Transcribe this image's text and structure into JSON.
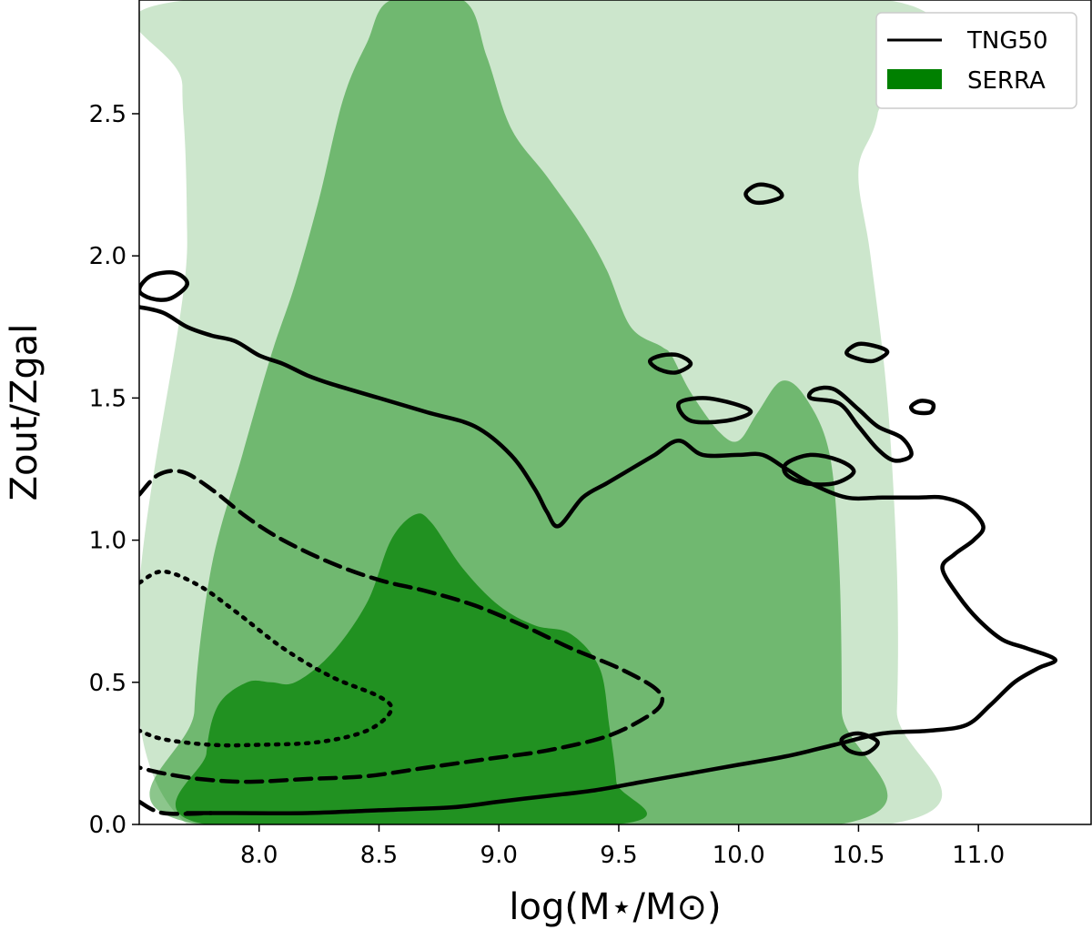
{
  "chart_data": {
    "type": "contour",
    "xlabel": "log(M⋆/M⊙)",
    "ylabel": "Zout/Zgal",
    "xlim": [
      7.5,
      11.47
    ],
    "ylim": [
      0.0,
      2.9
    ],
    "xticks": [
      "8.0",
      "8.5",
      "9.0",
      "9.5",
      "10.0",
      "10.5",
      "11.0"
    ],
    "yticks": [
      "0.0",
      "0.5",
      "1.0",
      "1.5",
      "2.0",
      "2.5"
    ],
    "grid": false,
    "legend": {
      "position": "top-right",
      "entries": [
        {
          "label": "TNG50",
          "style": "line",
          "color": "#000000"
        },
        {
          "label": "SERRA",
          "style": "filled",
          "color": "#008000"
        }
      ]
    },
    "series": [
      {
        "name": "SERRA",
        "kind": "filled-contours",
        "color": "#008000",
        "levels": [
          {
            "alpha": 0.2,
            "points": [
              [
                7.7,
                0.0
              ],
              [
                7.7,
                2.05
              ],
              [
                7.68,
                2.6
              ],
              [
                7.7,
                2.9
              ],
              [
                10.62,
                2.9
              ],
              [
                10.58,
                2.5
              ],
              [
                10.5,
                2.3
              ],
              [
                10.55,
                2.0
              ],
              [
                10.62,
                1.5
              ],
              [
                10.66,
                0.9
              ],
              [
                10.66,
                0.4
              ],
              [
                10.62,
                0.0
              ]
            ]
          },
          {
            "alpha": 0.45,
            "points": [
              [
                7.75,
                0.0
              ],
              [
                7.73,
                0.4
              ],
              [
                7.8,
                0.9
              ],
              [
                7.93,
                1.3
              ],
              [
                8.05,
                1.65
              ],
              [
                8.15,
                1.9
              ],
              [
                8.25,
                2.2
              ],
              [
                8.35,
                2.55
              ],
              [
                8.45,
                2.75
              ],
              [
                8.55,
                2.9
              ],
              [
                8.85,
                2.9
              ],
              [
                8.95,
                2.7
              ],
              [
                9.05,
                2.45
              ],
              [
                9.2,
                2.28
              ],
              [
                9.35,
                2.1
              ],
              [
                9.45,
                1.95
              ],
              [
                9.55,
                1.75
              ],
              [
                9.68,
                1.68
              ],
              [
                9.72,
                1.65
              ],
              [
                9.8,
                1.52
              ],
              [
                9.92,
                1.38
              ],
              [
                10.0,
                1.35
              ],
              [
                10.08,
                1.45
              ],
              [
                10.18,
                1.56
              ],
              [
                10.28,
                1.5
              ],
              [
                10.38,
                1.3
              ],
              [
                10.42,
                0.9
              ],
              [
                10.43,
                0.4
              ],
              [
                10.42,
                0.0
              ]
            ]
          },
          {
            "alpha": 0.7,
            "points": [
              [
                7.78,
                0.0
              ],
              [
                7.78,
                0.25
              ],
              [
                7.83,
                0.42
              ],
              [
                7.95,
                0.5
              ],
              [
                8.05,
                0.5
              ],
              [
                8.15,
                0.5
              ],
              [
                8.3,
                0.6
              ],
              [
                8.45,
                0.78
              ],
              [
                8.55,
                1.0
              ],
              [
                8.65,
                1.09
              ],
              [
                8.72,
                1.06
              ],
              [
                8.85,
                0.9
              ],
              [
                9.0,
                0.77
              ],
              [
                9.15,
                0.7
              ],
              [
                9.3,
                0.67
              ],
              [
                9.42,
                0.55
              ],
              [
                9.46,
                0.35
              ],
              [
                9.49,
                0.15
              ],
              [
                9.49,
                0.0
              ]
            ]
          }
        ]
      },
      {
        "name": "TNG50",
        "kind": "line-contours",
        "color": "#000000",
        "contours": [
          {
            "style": "solid",
            "closed": false,
            "points": [
              [
                7.5,
                1.82
              ],
              [
                7.6,
                1.8
              ],
              [
                7.7,
                1.75
              ],
              [
                7.8,
                1.72
              ],
              [
                7.9,
                1.7
              ],
              [
                8.0,
                1.65
              ],
              [
                8.1,
                1.62
              ],
              [
                8.2,
                1.58
              ],
              [
                8.3,
                1.55
              ],
              [
                8.5,
                1.5
              ],
              [
                8.7,
                1.45
              ],
              [
                8.9,
                1.4
              ],
              [
                9.05,
                1.3
              ],
              [
                9.15,
                1.18
              ],
              [
                9.2,
                1.1
              ],
              [
                9.25,
                1.05
              ],
              [
                9.35,
                1.15
              ],
              [
                9.45,
                1.2
              ],
              [
                9.55,
                1.25
              ],
              [
                9.65,
                1.3
              ],
              [
                9.75,
                1.35
              ],
              [
                9.85,
                1.3
              ],
              [
                10.0,
                1.3
              ],
              [
                10.1,
                1.3
              ],
              [
                10.2,
                1.25
              ],
              [
                10.3,
                1.2
              ],
              [
                10.45,
                1.15
              ],
              [
                10.6,
                1.15
              ],
              [
                10.75,
                1.15
              ],
              [
                10.85,
                1.15
              ],
              [
                10.95,
                1.12
              ],
              [
                11.02,
                1.05
              ],
              [
                10.98,
                1.0
              ],
              [
                10.9,
                0.95
              ],
              [
                10.85,
                0.9
              ],
              [
                10.92,
                0.8
              ],
              [
                11.0,
                0.72
              ],
              [
                11.1,
                0.65
              ],
              [
                11.2,
                0.62
              ],
              [
                11.32,
                0.58
              ],
              [
                11.25,
                0.55
              ],
              [
                11.15,
                0.5
              ],
              [
                11.05,
                0.42
              ],
              [
                10.95,
                0.35
              ],
              [
                10.8,
                0.33
              ],
              [
                10.6,
                0.32
              ],
              [
                10.4,
                0.28
              ],
              [
                10.2,
                0.24
              ],
              [
                10.0,
                0.21
              ],
              [
                9.8,
                0.18
              ],
              [
                9.6,
                0.15
              ],
              [
                9.4,
                0.12
              ],
              [
                9.2,
                0.1
              ],
              [
                9.0,
                0.08
              ],
              [
                8.8,
                0.06
              ],
              [
                8.5,
                0.05
              ],
              [
                8.2,
                0.04
              ],
              [
                7.9,
                0.04
              ],
              [
                7.7,
                0.04
              ]
            ]
          },
          {
            "style": "solid",
            "closed": true,
            "points": [
              [
                7.5,
                1.88
              ],
              [
                7.55,
                1.93
              ],
              [
                7.65,
                1.94
              ],
              [
                7.7,
                1.9
              ],
              [
                7.63,
                1.85
              ],
              [
                7.55,
                1.85
              ]
            ]
          },
          {
            "style": "solid",
            "closed": true,
            "points": [
              [
                10.03,
                2.22
              ],
              [
                10.08,
                2.25
              ],
              [
                10.15,
                2.24
              ],
              [
                10.18,
                2.21
              ],
              [
                10.12,
                2.19
              ],
              [
                10.06,
                2.19
              ]
            ]
          },
          {
            "style": "solid",
            "closed": true,
            "points": [
              [
                9.63,
                1.63
              ],
              [
                9.68,
                1.65
              ],
              [
                9.75,
                1.65
              ],
              [
                9.8,
                1.62
              ],
              [
                9.74,
                1.59
              ],
              [
                9.67,
                1.6
              ]
            ]
          },
          {
            "style": "solid",
            "closed": true,
            "points": [
              [
                10.45,
                1.66
              ],
              [
                10.5,
                1.69
              ],
              [
                10.58,
                1.68
              ],
              [
                10.62,
                1.66
              ],
              [
                10.56,
                1.63
              ],
              [
                10.49,
                1.64
              ]
            ]
          },
          {
            "style": "solid",
            "closed": true,
            "points": [
              [
                10.72,
                1.47
              ],
              [
                10.76,
                1.49
              ],
              [
                10.81,
                1.48
              ],
              [
                10.8,
                1.45
              ],
              [
                10.74,
                1.45
              ]
            ]
          },
          {
            "style": "solid",
            "closed": true,
            "points": [
              [
                9.75,
                1.48
              ],
              [
                9.85,
                1.5
              ],
              [
                9.98,
                1.48
              ],
              [
                10.05,
                1.45
              ],
              [
                9.95,
                1.42
              ],
              [
                9.8,
                1.42
              ]
            ]
          },
          {
            "style": "solid",
            "closed": true,
            "points": [
              [
                10.3,
                1.5
              ],
              [
                10.42,
                1.48
              ],
              [
                10.5,
                1.4
              ],
              [
                10.58,
                1.32
              ],
              [
                10.65,
                1.28
              ],
              [
                10.72,
                1.3
              ],
              [
                10.68,
                1.36
              ],
              [
                10.58,
                1.4
              ],
              [
                10.5,
                1.46
              ],
              [
                10.4,
                1.53
              ],
              [
                10.32,
                1.53
              ]
            ]
          },
          {
            "style": "solid",
            "closed": true,
            "points": [
              [
                10.2,
                1.27
              ],
              [
                10.3,
                1.3
              ],
              [
                10.42,
                1.28
              ],
              [
                10.48,
                1.24
              ],
              [
                10.4,
                1.2
              ],
              [
                10.28,
                1.2
              ],
              [
                10.2,
                1.23
              ]
            ]
          },
          {
            "style": "solid",
            "closed": true,
            "points": [
              [
                10.43,
                0.3
              ],
              [
                10.5,
                0.32
              ],
              [
                10.58,
                0.29
              ],
              [
                10.53,
                0.25
              ],
              [
                10.46,
                0.26
              ]
            ]
          },
          {
            "style": "dashed",
            "closed": false,
            "points": [
              [
                7.5,
                1.16
              ],
              [
                7.58,
                1.23
              ],
              [
                7.68,
                1.24
              ],
              [
                7.8,
                1.18
              ],
              [
                7.95,
                1.08
              ],
              [
                8.1,
                1.0
              ],
              [
                8.3,
                0.92
              ],
              [
                8.5,
                0.86
              ],
              [
                8.7,
                0.82
              ],
              [
                8.9,
                0.77
              ],
              [
                9.1,
                0.7
              ],
              [
                9.3,
                0.62
              ],
              [
                9.5,
                0.55
              ],
              [
                9.65,
                0.48
              ],
              [
                9.68,
                0.43
              ],
              [
                9.62,
                0.38
              ],
              [
                9.45,
                0.31
              ],
              [
                9.2,
                0.26
              ],
              [
                8.95,
                0.23
              ],
              [
                8.7,
                0.2
              ],
              [
                8.45,
                0.17
              ],
              [
                8.2,
                0.16
              ],
              [
                7.95,
                0.15
              ],
              [
                7.75,
                0.16
              ],
              [
                7.6,
                0.18
              ],
              [
                7.5,
                0.2
              ]
            ]
          },
          {
            "style": "dashed",
            "closed": false,
            "points": [
              [
                7.5,
                0.08
              ],
              [
                7.6,
                0.04
              ],
              [
                7.8,
                0.04
              ]
            ]
          },
          {
            "style": "dotted",
            "closed": false,
            "points": [
              [
                7.5,
                0.85
              ],
              [
                7.6,
                0.89
              ],
              [
                7.75,
                0.84
              ],
              [
                7.9,
                0.75
              ],
              [
                8.1,
                0.62
              ],
              [
                8.3,
                0.52
              ],
              [
                8.5,
                0.45
              ],
              [
                8.55,
                0.4
              ],
              [
                8.45,
                0.33
              ],
              [
                8.25,
                0.29
              ],
              [
                8.0,
                0.28
              ],
              [
                7.8,
                0.28
              ],
              [
                7.6,
                0.3
              ],
              [
                7.5,
                0.33
              ]
            ]
          }
        ]
      }
    ]
  }
}
